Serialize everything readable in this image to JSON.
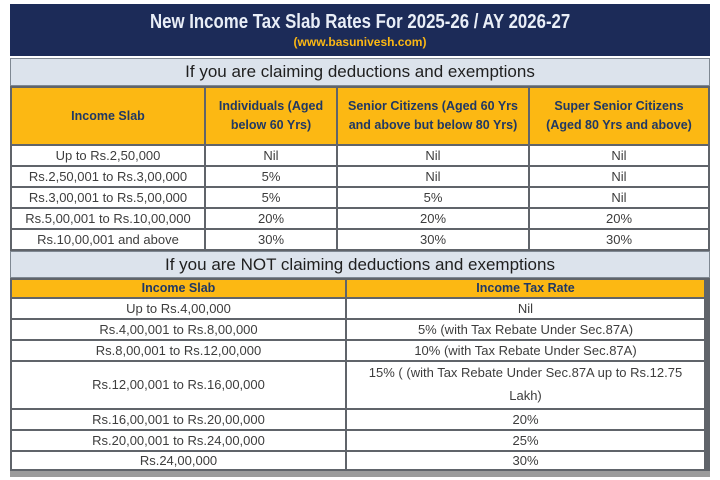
{
  "header": {
    "title": "New Income Tax Slab Rates For 2025-26 / AY 2026-27",
    "subtitle": "(www.basunivesh.com)"
  },
  "table_with_deductions": {
    "heading": "If you are claiming deductions and exemptions",
    "columns": [
      "Income Slab",
      "Individuals (Aged below 60 Yrs)",
      "Senior Citizens (Aged 60 Yrs and above but below 80 Yrs)",
      "Super Senior Citizens (Aged 80 Yrs and above)"
    ],
    "rows": [
      [
        "Up to Rs.2,50,000",
        "Nil",
        "Nil",
        "Nil"
      ],
      [
        "Rs.2,50,001 to Rs.3,00,000",
        "5%",
        "Nil",
        "Nil"
      ],
      [
        "Rs.3,00,001 to Rs.5,00,000",
        "5%",
        "5%",
        "Nil"
      ],
      [
        "Rs.5,00,001 to Rs.10,00,000",
        "20%",
        "20%",
        "20%"
      ],
      [
        "Rs.10,00,001 and above",
        "30%",
        "30%",
        "30%"
      ]
    ]
  },
  "table_without_deductions": {
    "heading": "If you are NOT claiming deductions and exemptions",
    "columns": [
      "Income Slab",
      "Income Tax Rate"
    ],
    "rows": [
      [
        "Up to Rs.4,00,000",
        "Nil"
      ],
      [
        "Rs.4,00,001 to Rs.8,00,000",
        "5% (with Tax Rebate Under Sec.87A)"
      ],
      [
        "Rs.8,00,001 to Rs.12,00,000",
        "10% (with Tax Rebate Under Sec.87A)"
      ],
      [
        "Rs.12,00,001 to Rs.16,00,000",
        "15% ( (with Tax Rebate Under Sec.87A up to Rs.12.75 Lakh)"
      ],
      [
        "Rs.16,00,001 to Rs.20,00,000",
        "20%"
      ],
      [
        "Rs.20,00,001 to Rs.24,00,000",
        "25%"
      ],
      [
        "Rs.24,00,000",
        "30%"
      ]
    ]
  },
  "colors": {
    "title_bg": "#1c2b58",
    "title_text": "#e9eef7",
    "accent_gold": "#fcb813",
    "band_bg": "#dce3ec",
    "header_text": "#203864",
    "body_text": "#3d3d3d",
    "gridline": "#60646a"
  }
}
